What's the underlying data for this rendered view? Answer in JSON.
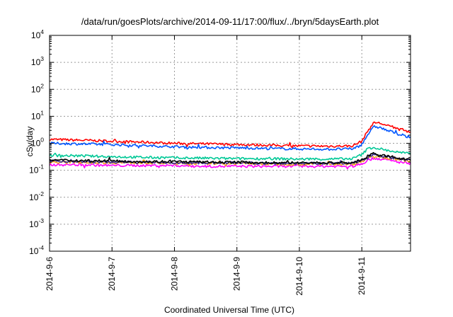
{
  "chart_data": {
    "type": "line",
    "title": "/data/run/goesPlots/archive/2014-09-11/17:00/flux/../bryn/5daysEarth.plot",
    "xlabel": "Coordinated Universal Time (UTC)",
    "ylabel": "cSv/day",
    "yscale": "log",
    "ylim": [
      0.0001,
      10000
    ],
    "xlim": [
      0,
      5.78
    ],
    "grid": true,
    "x_tick_labels": [
      "2014-9-6",
      "2014-9-7",
      "2014-9-8",
      "2014-9-9",
      "2014-9-10",
      "2014-9-11"
    ],
    "y_ticks": [
      {
        "base": "10",
        "exp": "4",
        "value": 10000
      },
      {
        "base": "10",
        "exp": "3",
        "value": 1000
      },
      {
        "base": "10",
        "exp": "2",
        "value": 100
      },
      {
        "base": "10",
        "exp": "1",
        "value": 10
      },
      {
        "base": "10",
        "exp": "0",
        "value": 1
      },
      {
        "base": "10",
        "exp": "-1",
        "value": 0.1
      },
      {
        "base": "10",
        "exp": "-2",
        "value": 0.01
      },
      {
        "base": "10",
        "exp": "-3",
        "value": 0.001
      },
      {
        "base": "10",
        "exp": "-4",
        "value": 0.0001
      }
    ],
    "x_days": [
      0,
      0.5,
      1,
      1.5,
      2,
      2.5,
      3,
      3.5,
      4,
      4.5,
      4.85,
      5.0,
      5.1,
      5.2,
      5.3,
      5.4,
      5.5,
      5.6,
      5.7,
      5.78
    ],
    "series": [
      {
        "color": "#ff0000",
        "values": [
          1.4,
          1.3,
          1.2,
          1.1,
          1.0,
          0.95,
          0.9,
          0.85,
          0.8,
          0.78,
          0.8,
          1.2,
          3.0,
          6.0,
          5.5,
          4.5,
          4.0,
          3.3,
          2.9,
          2.7
        ]
      },
      {
        "color": "#0055ff",
        "values": [
          1.0,
          0.95,
          0.9,
          0.82,
          0.75,
          0.7,
          0.68,
          0.64,
          0.62,
          0.6,
          0.62,
          0.9,
          2.2,
          4.2,
          3.8,
          3.0,
          2.6,
          2.1,
          1.8,
          1.7
        ]
      },
      {
        "color": "#00c896",
        "values": [
          0.36,
          0.34,
          0.32,
          0.3,
          0.29,
          0.28,
          0.27,
          0.27,
          0.26,
          0.26,
          0.27,
          0.38,
          0.65,
          0.7,
          0.62,
          0.55,
          0.5,
          0.46,
          0.43,
          0.41
        ]
      },
      {
        "color": "#ff00ff",
        "values": [
          0.16,
          0.16,
          0.15,
          0.15,
          0.15,
          0.14,
          0.14,
          0.14,
          0.14,
          0.14,
          0.14,
          0.17,
          0.24,
          0.28,
          0.26,
          0.24,
          0.22,
          0.2,
          0.19,
          0.18
        ]
      },
      {
        "color": "#f0a020",
        "values": [
          0.2,
          0.2,
          0.19,
          0.19,
          0.18,
          0.18,
          0.18,
          0.17,
          0.17,
          0.17,
          0.17,
          0.21,
          0.3,
          0.35,
          0.32,
          0.29,
          0.27,
          0.25,
          0.23,
          0.22
        ]
      },
      {
        "color": "#3b2f8f",
        "values": [
          0.22,
          0.21,
          0.2,
          0.2,
          0.19,
          0.19,
          0.19,
          0.18,
          0.18,
          0.18,
          0.18,
          0.23,
          0.33,
          0.39,
          0.35,
          0.31,
          0.29,
          0.27,
          0.25,
          0.24
        ]
      },
      {
        "color": "#000000",
        "values": [
          0.24,
          0.23,
          0.22,
          0.21,
          0.21,
          0.2,
          0.2,
          0.19,
          0.19,
          0.19,
          0.19,
          0.24,
          0.35,
          0.42,
          0.37,
          0.33,
          0.31,
          0.28,
          0.26,
          0.25
        ]
      }
    ]
  }
}
